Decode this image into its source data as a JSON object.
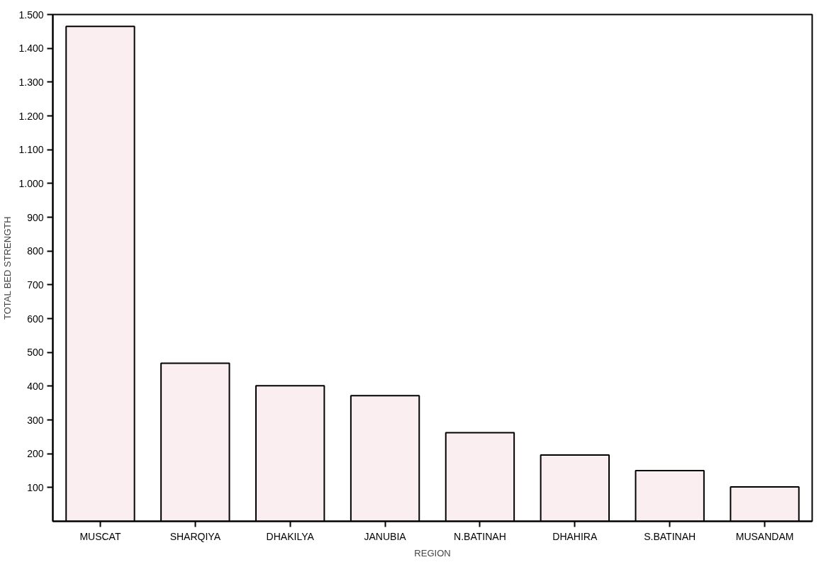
{
  "chart_data": {
    "type": "bar",
    "xlabel": "REGION",
    "ylabel": "TOTAL BED STRENGTH",
    "categories": [
      "MUSCAT",
      "SHARQIYA",
      "DHAKILYA",
      "JANUBIA",
      "N.BATINAH",
      "DHAHIRA",
      "S.BATINAH",
      "MUSANDAM"
    ],
    "values": [
      1465,
      468,
      401,
      372,
      262,
      196,
      150,
      102
    ],
    "color": "#fbeef0",
    "ylim": [
      0,
      1500
    ],
    "yticks": [
      100,
      200,
      300,
      400,
      500,
      600,
      700,
      800,
      900,
      {
        "value": 1000,
        "label": "1.000"
      },
      {
        "value": 1100,
        "label": "1.100"
      },
      {
        "value": 1200,
        "label": "1.200"
      },
      {
        "value": 1300,
        "label": "1.300"
      },
      {
        "value": 1400,
        "label": "1.400"
      },
      {
        "value": 1500,
        "label": "1.500"
      }
    ],
    "grid": false
  }
}
